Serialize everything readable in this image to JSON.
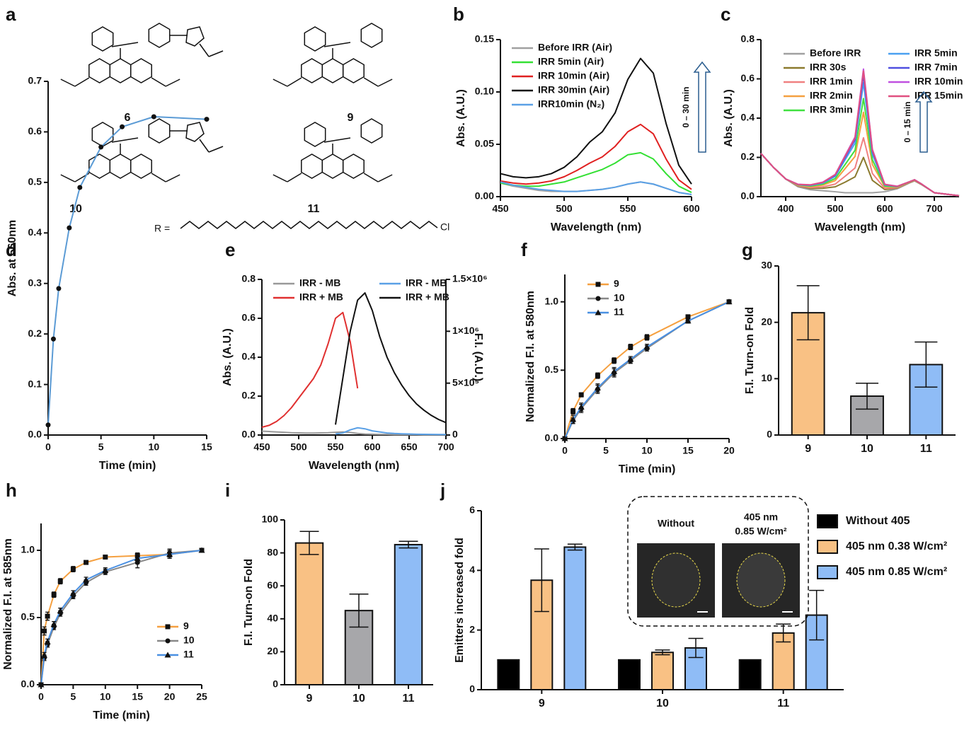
{
  "structures": {
    "panel": "a",
    "compounds": [
      "6",
      "9",
      "10",
      "11"
    ],
    "r_label": "R =",
    "r_end": "Cl"
  },
  "chart_data": [
    {
      "panel": "b",
      "type": "line",
      "xlabel": "Wavelength (nm)",
      "ylabel": "Abs. (A.U.)",
      "annotation": "0 – 30 min",
      "x": [
        450,
        460,
        470,
        480,
        490,
        500,
        510,
        520,
        530,
        540,
        550,
        560,
        570,
        580,
        590,
        600
      ],
      "xlim": [
        450,
        600
      ],
      "xticks": [
        450,
        500,
        550,
        600
      ],
      "ylim": [
        0,
        0.15
      ],
      "yticks": [
        {
          "value": 0,
          "label": "0.00"
        },
        {
          "value": 0.05,
          "label": "0.05"
        },
        {
          "value": 0.1,
          "label": "0.10"
        },
        {
          "value": 0.15,
          "label": "0.15"
        }
      ],
      "series": [
        {
          "name": "Before IRR (Air)",
          "color": "#a0a0a0",
          "values": [
            0.013,
            0.01,
            0.008,
            0.006,
            0.005,
            0.005,
            0.005,
            0.006,
            0.007,
            0.009,
            0.012,
            0.014,
            0.012,
            0.008,
            0.004,
            0.002
          ]
        },
        {
          "name": "IRR 5min (Air)",
          "color": "#33e033",
          "values": [
            0.013,
            0.011,
            0.01,
            0.01,
            0.012,
            0.014,
            0.018,
            0.022,
            0.026,
            0.032,
            0.04,
            0.042,
            0.036,
            0.022,
            0.01,
            0.004
          ]
        },
        {
          "name": "IRR 10min (Air)",
          "color": "#e02020",
          "values": [
            0.015,
            0.013,
            0.012,
            0.013,
            0.015,
            0.019,
            0.025,
            0.032,
            0.038,
            0.048,
            0.062,
            0.069,
            0.06,
            0.036,
            0.016,
            0.007
          ]
        },
        {
          "name": "IRR 30min (Air)",
          "color": "#111111",
          "values": [
            0.022,
            0.019,
            0.018,
            0.019,
            0.022,
            0.028,
            0.038,
            0.052,
            0.062,
            0.08,
            0.112,
            0.132,
            0.118,
            0.07,
            0.03,
            0.012
          ]
        },
        {
          "name": "IRR10min (N₂)",
          "color": "#5aa0e6",
          "values": [
            0.014,
            0.011,
            0.009,
            0.007,
            0.006,
            0.005,
            0.005,
            0.006,
            0.007,
            0.009,
            0.012,
            0.014,
            0.012,
            0.008,
            0.004,
            0.002
          ]
        }
      ]
    },
    {
      "panel": "c",
      "type": "line",
      "xlabel": "Wavelength (nm)",
      "ylabel": "Abs. (A.U.)",
      "annotation": "0 – 15 min",
      "x": [
        350,
        375,
        400,
        425,
        450,
        475,
        500,
        520,
        540,
        557,
        575,
        600,
        625,
        650,
        660,
        675,
        700,
        750
      ],
      "xlim": [
        350,
        750
      ],
      "xticks": [
        400,
        500,
        600,
        700
      ],
      "ylim": [
        0,
        0.8
      ],
      "yticks": [
        {
          "value": 0,
          "label": "0.0"
        },
        0.2,
        0.4,
        0.6,
        0.8
      ],
      "series": [
        {
          "name": "Before IRR",
          "color": "#a0a0a0",
          "values": [
            0.22,
            0.15,
            0.09,
            0.05,
            0.035,
            0.03,
            0.025,
            0.02,
            0.02,
            0.02,
            0.02,
            0.025,
            0.04,
            0.07,
            0.08,
            0.06,
            0.02,
            0.005
          ]
        },
        {
          "name": "IRR 30s",
          "color": "#8b7a2e",
          "values": [
            0.22,
            0.15,
            0.09,
            0.054,
            0.042,
            0.043,
            0.05,
            0.074,
            0.101,
            0.2,
            0.083,
            0.036,
            0.044,
            0.072,
            0.082,
            0.061,
            0.02,
            0.005
          ]
        },
        {
          "name": "IRR 1min",
          "color": "#f08080",
          "values": [
            0.22,
            0.15,
            0.09,
            0.056,
            0.046,
            0.05,
            0.064,
            0.104,
            0.146,
            0.3,
            0.118,
            0.042,
            0.046,
            0.073,
            0.083,
            0.061,
            0.02,
            0.005
          ]
        },
        {
          "name": "IRR 2min",
          "color": "#f4a040",
          "values": [
            0.22,
            0.15,
            0.09,
            0.058,
            0.051,
            0.059,
            0.082,
            0.143,
            0.205,
            0.43,
            0.164,
            0.05,
            0.048,
            0.074,
            0.084,
            0.062,
            0.02,
            0.005
          ]
        },
        {
          "name": "IRR 3min",
          "color": "#40e040",
          "values": [
            0.22,
            0.15,
            0.09,
            0.06,
            0.054,
            0.064,
            0.092,
            0.164,
            0.236,
            0.5,
            0.188,
            0.054,
            0.05,
            0.075,
            0.085,
            0.062,
            0.02,
            0.005
          ]
        },
        {
          "name": "IRR 5min",
          "color": "#4aa0f0",
          "values": [
            0.22,
            0.15,
            0.09,
            0.061,
            0.057,
            0.069,
            0.103,
            0.188,
            0.272,
            0.58,
            0.216,
            0.059,
            0.051,
            0.076,
            0.086,
            0.063,
            0.02,
            0.005
          ]
        },
        {
          "name": "IRR 7min",
          "color": "#5050e0",
          "values": [
            0.22,
            0.15,
            0.09,
            0.062,
            0.059,
            0.072,
            0.109,
            0.2,
            0.29,
            0.62,
            0.23,
            0.061,
            0.052,
            0.076,
            0.086,
            0.063,
            0.02,
            0.005
          ]
        },
        {
          "name": "IRR 10min",
          "color": "#c050e0",
          "values": [
            0.22,
            0.15,
            0.09,
            0.063,
            0.06,
            0.074,
            0.113,
            0.209,
            0.304,
            0.65,
            0.241,
            0.063,
            0.053,
            0.076,
            0.086,
            0.063,
            0.02,
            0.005
          ]
        },
        {
          "name": "IRR 15min",
          "color": "#e05080",
          "values": [
            0.22,
            0.15,
            0.09,
            0.062,
            0.06,
            0.073,
            0.112,
            0.206,
            0.299,
            0.64,
            0.237,
            0.062,
            0.052,
            0.076,
            0.086,
            0.063,
            0.02,
            0.005
          ]
        }
      ]
    },
    {
      "panel": "d",
      "type": "line",
      "xlabel": "Time (min)",
      "ylabel": "Abs. at 560nm",
      "marker_color": "#111111",
      "x": [
        0,
        0.5,
        1,
        2,
        3,
        5,
        7,
        10,
        15
      ],
      "xlim": [
        0,
        15
      ],
      "xticks": [
        0,
        5,
        10,
        15
      ],
      "ylim": [
        0,
        0.7
      ],
      "yticks": [
        {
          "value": 0,
          "label": "0.0"
        },
        0.1,
        0.2,
        0.3,
        0.4,
        0.5,
        0.6,
        0.7
      ],
      "series": [
        {
          "color": "#5b9bd5",
          "marker": "circle",
          "values": [
            0.02,
            0.19,
            0.29,
            0.41,
            0.49,
            0.57,
            0.61,
            0.63,
            0.625
          ]
        }
      ]
    },
    {
      "panel": "e",
      "type": "line",
      "xlabel": "Wavelength (nm)",
      "ylabel": "Abs. (A.U.)",
      "y2label": "F.I. (A.U.)",
      "x": [
        450,
        460,
        470,
        480,
        490,
        500,
        510,
        520,
        530,
        540,
        550,
        560,
        570,
        580,
        590,
        600,
        610,
        620,
        630,
        640,
        650,
        660,
        670,
        680,
        690,
        700
      ],
      "xlim": [
        450,
        700
      ],
      "xticks": [
        450,
        500,
        550,
        600,
        650,
        700
      ],
      "ylim": [
        0,
        0.8
      ],
      "yticks": [
        {
          "value": 0,
          "label": "0.0"
        },
        0.2,
        0.4,
        0.6,
        0.8
      ],
      "y2lim": [
        0,
        1500000
      ],
      "y2ticks": [
        0,
        {
          "value": 500000,
          "label": "5×10⁵"
        },
        {
          "value": 1000000,
          "label": "1×10⁶"
        },
        {
          "value": 1500000,
          "label": "1.5×10⁶"
        }
      ],
      "series": [
        {
          "name": "IRR  - MB",
          "color": "#999999",
          "values": [
            0.02,
            0.018,
            0.016,
            0.014,
            0.012,
            0.011,
            0.01,
            0.01,
            0.011,
            0.012,
            0.014,
            0.016,
            0.013,
            0.008,
            0.005,
            0.004,
            0.003,
            0.003,
            0.002,
            0.002,
            0.002,
            0.002,
            0.001,
            0.001,
            0.001,
            0.001
          ]
        },
        {
          "name": "IRR  + MB",
          "color": "#e03030",
          "values": [
            0.04,
            0.05,
            0.07,
            0.1,
            0.14,
            0.19,
            0.24,
            0.29,
            0.36,
            0.47,
            0.6,
            0.63,
            0.48,
            0.24,
            null,
            null,
            null,
            null,
            null,
            null,
            null,
            null,
            null,
            null,
            null,
            null
          ]
        },
        {
          "name": "IRR  - MB",
          "color": "#5aa0e6",
          "axis": "y2",
          "values": [
            null,
            null,
            null,
            null,
            null,
            null,
            null,
            null,
            null,
            null,
            10000,
            20000,
            50000,
            70000,
            60000,
            40000,
            30000,
            20000,
            15000,
            12000,
            10000,
            8000,
            7000,
            6000,
            5000,
            5000
          ]
        },
        {
          "name": "IRR  + MB",
          "color": "#111111",
          "axis": "y2",
          "values": [
            null,
            null,
            null,
            null,
            null,
            null,
            null,
            null,
            null,
            null,
            100000,
            550000,
            1000000,
            1300000,
            1370000,
            1200000,
            950000,
            750000,
            600000,
            480000,
            380000,
            300000,
            240000,
            190000,
            150000,
            120000
          ]
        }
      ]
    },
    {
      "panel": "f",
      "type": "line",
      "xlabel": "Time (min)",
      "ylabel": "Normalized F.I. at 580nm",
      "marker_color": "#111111",
      "x": [
        0,
        1,
        2,
        4,
        6,
        8,
        10,
        15,
        20
      ],
      "xlim": [
        0,
        20
      ],
      "xticks": [
        0,
        5,
        10,
        15,
        20
      ],
      "ylim": [
        0,
        1.2
      ],
      "yticks": [
        {
          "value": 0,
          "label": "0.0"
        },
        0.5,
        {
          "value": 1,
          "label": "1.0"
        }
      ],
      "series": [
        {
          "name": "9",
          "color": "#f5a040",
          "marker": "square",
          "values": [
            0,
            0.2,
            0.32,
            0.46,
            0.57,
            0.67,
            0.74,
            0.89,
            1
          ],
          "errors": [
            0,
            0.02,
            0.015,
            0.02,
            0.02,
            0.02,
            0.02,
            0.015,
            0.01
          ]
        },
        {
          "name": "10",
          "color": "#888888",
          "marker": "circle",
          "values": [
            0,
            0.13,
            0.22,
            0.36,
            0.48,
            0.57,
            0.66,
            0.86,
            1
          ],
          "errors": [
            0,
            0.02,
            0.03,
            0.03,
            0.03,
            0.02,
            0.02,
            0.015,
            0.01
          ]
        },
        {
          "name": "11",
          "color": "#4a90e2",
          "marker": "triangle",
          "values": [
            0,
            0.14,
            0.23,
            0.37,
            0.49,
            0.58,
            0.67,
            0.86,
            1
          ],
          "errors": [
            0,
            0.03,
            0.03,
            0.03,
            0.03,
            0.02,
            0.02,
            0.015,
            0.01
          ]
        }
      ]
    },
    {
      "panel": "g",
      "type": "bar",
      "ylabel": "F.I. Turn-on Fold",
      "categories": [
        "9",
        "10",
        "11"
      ],
      "values": [
        21.7,
        6.9,
        12.5
      ],
      "errors": [
        4.8,
        2.3,
        4
      ],
      "colors": [
        "#f9c184",
        "#a7a7aa",
        "#8fbcf6"
      ],
      "ylim": [
        0,
        30
      ],
      "yticks": [
        0,
        10,
        20,
        30
      ]
    },
    {
      "panel": "h",
      "type": "line",
      "xlabel": "Time (min)",
      "ylabel": "Normalized F.I. at 585nm",
      "marker_color": "#111111",
      "x": [
        0,
        0.5,
        1,
        2,
        3,
        5,
        7,
        10,
        15,
        20,
        25
      ],
      "xlim": [
        0,
        25
      ],
      "xticks": [
        0,
        5,
        10,
        15,
        20,
        25
      ],
      "ylim": [
        0,
        1.2
      ],
      "yticks": [
        {
          "value": 0,
          "label": "0.0"
        },
        0.5,
        {
          "value": 1,
          "label": "1.0"
        }
      ],
      "series": [
        {
          "name": "9",
          "color": "#f5a040",
          "marker": "square",
          "values": [
            0,
            0.4,
            0.51,
            0.67,
            0.77,
            0.86,
            0.91,
            0.95,
            0.96,
            0.97,
            1
          ],
          "errors": [
            0,
            0.03,
            0.03,
            0.02,
            0.02,
            0.02,
            0.01,
            0.01,
            0.02,
            0.03,
            0.01
          ]
        },
        {
          "name": "10",
          "color": "#888888",
          "marker": "circle",
          "values": [
            0,
            0.2,
            0.3,
            0.43,
            0.53,
            0.66,
            0.76,
            0.84,
            0.91,
            0.98,
            1
          ],
          "errors": [
            0,
            0.02,
            0.02,
            0.02,
            0.02,
            0.02,
            0.02,
            0.02,
            0.04,
            0.03,
            0.01
          ]
        },
        {
          "name": "11",
          "color": "#4a90e2",
          "marker": "triangle",
          "values": [
            0,
            0.22,
            0.32,
            0.45,
            0.55,
            0.68,
            0.78,
            0.85,
            0.94,
            0.97,
            1
          ],
          "errors": [
            0,
            0.02,
            0.02,
            0.02,
            0.02,
            0.02,
            0.02,
            0.02,
            0.04,
            0.03,
            0.01
          ]
        }
      ]
    },
    {
      "panel": "i",
      "type": "bar",
      "ylabel": "F.I. Turn-on Fold",
      "categories": [
        "9",
        "10",
        "11"
      ],
      "values": [
        86,
        45,
        85
      ],
      "errors": [
        7,
        10,
        2
      ],
      "colors": [
        "#f9c184",
        "#a7a7aa",
        "#8fbcf6"
      ],
      "ylim": [
        0,
        100
      ],
      "yticks": [
        0,
        20,
        40,
        60,
        80,
        100
      ]
    },
    {
      "panel": "j",
      "type": "bar",
      "ylabel": "Emitters increased fold",
      "categories": [
        "9",
        "10",
        "11"
      ],
      "inset": [
        "Without",
        "405 nm",
        "0.85 W/cm²"
      ],
      "ylim": [
        0,
        6
      ],
      "yticks": [
        0,
        2,
        4,
        6
      ],
      "series": [
        {
          "name": "Without 405",
          "color": "#000000",
          "values": [
            1,
            1,
            1
          ]
        },
        {
          "name": "405 nm 0.38 W/cm²",
          "color": "#f9c184",
          "values": [
            3.67,
            1.25,
            1.9
          ],
          "errors": [
            1.05,
            0.08,
            0.3
          ]
        },
        {
          "name": "405 nm 0.85 W/cm²",
          "color": "#8fbcf6",
          "values": [
            4.78,
            1.4,
            2.5
          ],
          "errors": [
            0.1,
            0.32,
            0.83
          ]
        }
      ]
    }
  ]
}
